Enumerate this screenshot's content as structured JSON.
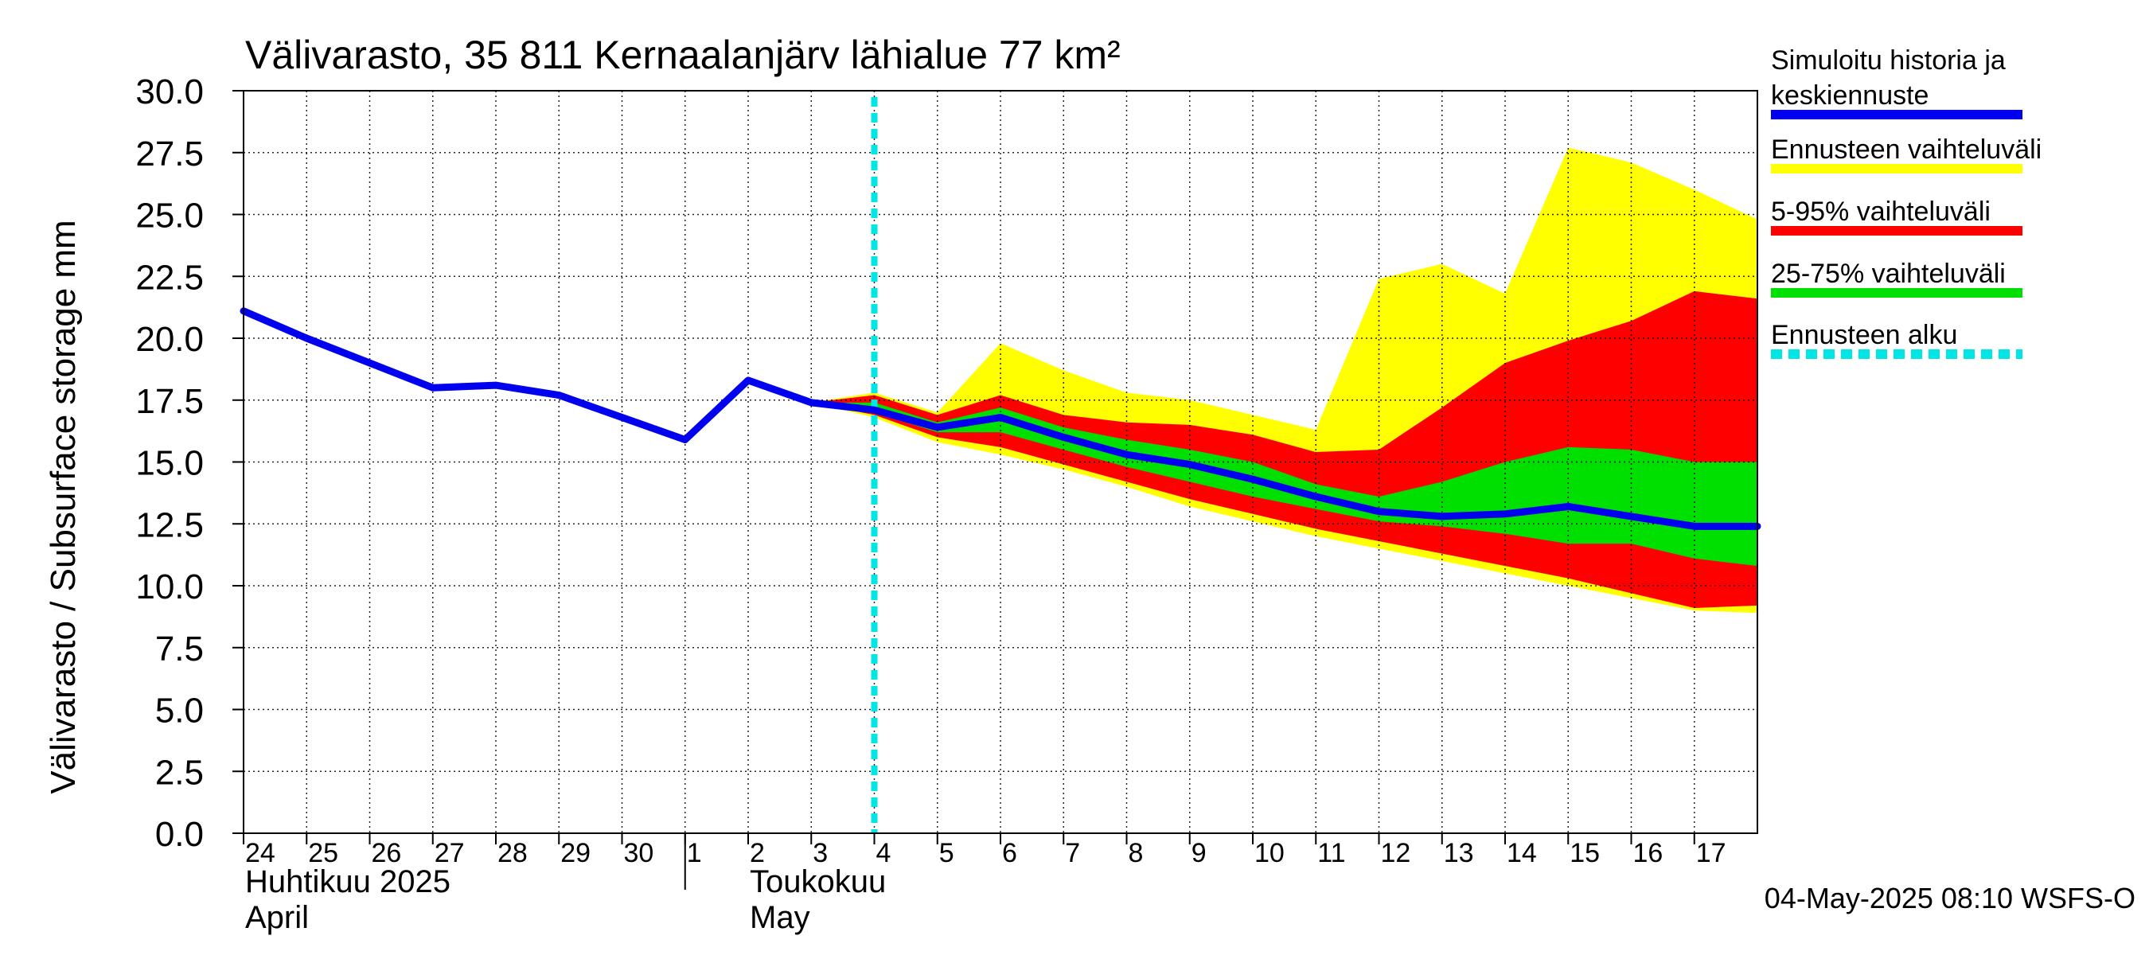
{
  "chart_data": {
    "type": "area",
    "title": "Välivarasto, 35 811 Kernaalanjärv lähialue 77 km²",
    "ylabel": "Välivarasto / Subsurface storage  mm",
    "ylim": [
      0,
      30
    ],
    "yticks": [
      "0.0",
      "2.5",
      "5.0",
      "7.5",
      "10.0",
      "12.5",
      "15.0",
      "17.5",
      "20.0",
      "22.5",
      "25.0",
      "27.5",
      "30.0"
    ],
    "xlim": [
      0,
      24
    ],
    "grid": true,
    "legend_position": "right",
    "day_labels": [
      "24",
      "25",
      "26",
      "27",
      "28",
      "29",
      "30",
      "1",
      "2",
      "3",
      "4",
      "5",
      "6",
      "7",
      "8",
      "9",
      "10",
      "11",
      "12",
      "13",
      "14",
      "15",
      "16",
      "17"
    ],
    "month_labels": [
      {
        "line1": "Huhtikuu  2025",
        "line2": "April",
        "day_index": 0
      },
      {
        "line1": "Toukokuu",
        "line2": "May",
        "day_index": 8
      }
    ],
    "month_separator_index": 7,
    "forecast_start_x": 10.0,
    "footer": "04-May-2025 08:10 WSFS-O",
    "legend": [
      {
        "label_lines": [
          "Simuloitu historia ja",
          "keskiennuste"
        ],
        "color": "#0000ee",
        "style": "solid"
      },
      {
        "label_lines": [
          "Ennusteen vaihteluväli"
        ],
        "color": "#ffff00",
        "style": "solid"
      },
      {
        "label_lines": [
          "5-95% vaihteluväli"
        ],
        "color": "#ff0000",
        "style": "solid"
      },
      {
        "label_lines": [
          "25-75% vaihteluväli"
        ],
        "color": "#00e000",
        "style": "solid"
      },
      {
        "label_lines": [
          "Ennusteen alku"
        ],
        "color": "#00e5e5",
        "style": "dashed"
      }
    ],
    "bands_x": [
      9,
      10,
      11,
      12,
      13,
      14,
      15,
      16,
      17,
      18,
      19,
      20,
      21,
      22,
      23,
      24
    ],
    "bands": [
      {
        "name": "Ennusteen vaihteluväli",
        "color": "#ffff00",
        "upper": [
          17.4,
          17.8,
          17.0,
          19.8,
          18.7,
          17.8,
          17.5,
          16.9,
          16.3,
          22.4,
          23.0,
          21.8,
          27.7,
          27.1,
          26.0,
          24.8
        ],
        "lower": [
          17.4,
          16.8,
          15.8,
          15.3,
          14.7,
          14.0,
          13.2,
          12.6,
          12.0,
          11.5,
          11.0,
          10.5,
          10.0,
          9.5,
          9.0,
          8.9
        ]
      },
      {
        "name": "5-95% vaihteluväli",
        "color": "#ff0000",
        "upper": [
          17.4,
          17.7,
          16.9,
          17.7,
          16.9,
          16.6,
          16.5,
          16.1,
          15.4,
          15.5,
          17.2,
          19.0,
          19.9,
          20.7,
          21.9,
          21.6
        ],
        "lower": [
          17.4,
          16.9,
          16.0,
          15.6,
          14.9,
          14.2,
          13.5,
          12.9,
          12.3,
          11.8,
          11.3,
          10.8,
          10.3,
          9.7,
          9.1,
          9.2
        ]
      },
      {
        "name": "25-75% vaihteluväli",
        "color": "#00e000",
        "upper": [
          17.4,
          17.4,
          16.6,
          17.2,
          16.4,
          15.9,
          15.5,
          15.0,
          14.1,
          13.6,
          14.2,
          15.0,
          15.6,
          15.5,
          15.0,
          15.0
        ],
        "lower": [
          17.4,
          17.0,
          16.2,
          16.2,
          15.5,
          14.8,
          14.2,
          13.6,
          13.1,
          12.6,
          12.4,
          12.1,
          11.7,
          11.7,
          11.1,
          10.8
        ]
      }
    ],
    "series": [
      {
        "name": "Simuloitu historia ja keskiennuste",
        "color": "#0000ee",
        "x": [
          0,
          1,
          2,
          3,
          4,
          5,
          6,
          7,
          8,
          9,
          10,
          11,
          12,
          13,
          14,
          15,
          16,
          17,
          18,
          19,
          20,
          21,
          22,
          23,
          24
        ],
        "values": [
          21.1,
          20.0,
          19.0,
          18.0,
          18.1,
          17.7,
          16.8,
          15.9,
          18.3,
          17.4,
          17.1,
          16.4,
          16.8,
          16.0,
          15.3,
          14.9,
          14.3,
          13.6,
          13.0,
          12.8,
          12.9,
          13.2,
          12.8,
          12.4,
          12.4
        ]
      }
    ]
  }
}
